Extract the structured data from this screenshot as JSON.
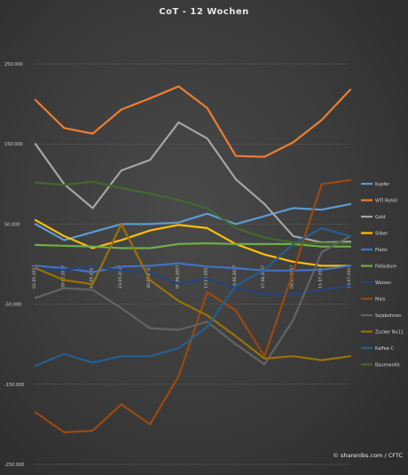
{
  "chart_data": {
    "type": "line",
    "title": "CoT  - 12 Wochen",
    "credit": "© sharenibs.com / CFTC",
    "xlabel": "",
    "ylabel": "",
    "ylim": [
      -250000,
      250000
    ],
    "yticks": [
      {
        "value": 250000,
        "label": "250.000"
      },
      {
        "value": 150000,
        "label": "150.000"
      },
      {
        "value": 50000,
        "label": "50.000"
      },
      {
        "value": -50000,
        "label": "-50.000"
      },
      {
        "value": -150000,
        "label": "-150.000"
      },
      {
        "value": -250000,
        "label": "-250.000"
      }
    ],
    "grid": true,
    "legend_position": "right",
    "categories": [
      "02.05.2017",
      "09.05.2017",
      "16.05.2017",
      "23.05.2017",
      "30.05.2017",
      "06.06.2017",
      "13.06.2017",
      "20.06.2017",
      "27.06.2017",
      "04.07.2017",
      "11.07.2017",
      "18.07.2017"
    ],
    "series": [
      {
        "name": "Kupfer",
        "color": "#5b9bd5",
        "values": [
          50000,
          30000,
          40000,
          50000,
          50000,
          52000,
          63000,
          50000,
          60000,
          70000,
          68000,
          75000
        ]
      },
      {
        "name": "WTI Rohöl",
        "color": "#ed7d31",
        "values": [
          205000,
          170000,
          163000,
          193000,
          207000,
          222000,
          195000,
          135000,
          134000,
          152000,
          180000,
          218000
        ]
      },
      {
        "name": "Gold",
        "color": "#a5a5a5",
        "values": [
          150000,
          100000,
          70000,
          117000,
          130000,
          177000,
          157000,
          106000,
          75000,
          35000,
          27000,
          28000
        ]
      },
      {
        "name": "Silber",
        "color": "#ffc000",
        "values": [
          55000,
          35000,
          20000,
          30000,
          42000,
          49000,
          45000,
          25000,
          12000,
          3000,
          -2000,
          -2000
        ]
      },
      {
        "name": "Platin",
        "color": "#4472c4",
        "values": [
          -2000,
          -5000,
          -10000,
          -3000,
          -2000,
          1000,
          -3000,
          -5000,
          -8000,
          -8000,
          -7000,
          -2000
        ]
      },
      {
        "name": "Palladium",
        "color": "#70ad47",
        "values": [
          24000,
          23000,
          22000,
          20000,
          20000,
          25000,
          26000,
          25000,
          25000,
          25000,
          22000,
          22000
        ]
      },
      {
        "name": "Weizen",
        "color": "#264478",
        "values": [
          -7000,
          -7000,
          -3000,
          -8000,
          -10000,
          -25000,
          -18000,
          -30000,
          -37000,
          -37000,
          -32000,
          -27000
        ]
      },
      {
        "name": "Mais",
        "color": "#9e480e",
        "values": [
          -185000,
          -210000,
          -208000,
          -175000,
          -200000,
          -140000,
          -35000,
          -58000,
          -115000,
          -10000,
          100000,
          105000
        ]
      },
      {
        "name": "Sojabohnen",
        "color": "#636363",
        "values": [
          -42000,
          -30000,
          -32000,
          -55000,
          -80000,
          -82000,
          -72000,
          -100000,
          -125000,
          -70000,
          15000,
          35000
        ]
      },
      {
        "name": "Zucker No11",
        "color": "#997300",
        "values": [
          -5000,
          -20000,
          -25000,
          50000,
          -20000,
          -46000,
          -64000,
          -90000,
          -118000,
          -115000,
          -120000,
          -115000
        ]
      },
      {
        "name": "Kaffee C",
        "color": "#255e91",
        "values": [
          -127000,
          -112000,
          -123000,
          -115000,
          -115000,
          -105000,
          -78000,
          -27000,
          -7000,
          25000,
          45000,
          35000
        ]
      },
      {
        "name": "Baumwolle",
        "color": "#43682b",
        "values": [
          102000,
          99000,
          103000,
          95000,
          88000,
          80000,
          70000,
          45000,
          33000,
          27000,
          26000,
          26000
        ]
      }
    ]
  }
}
